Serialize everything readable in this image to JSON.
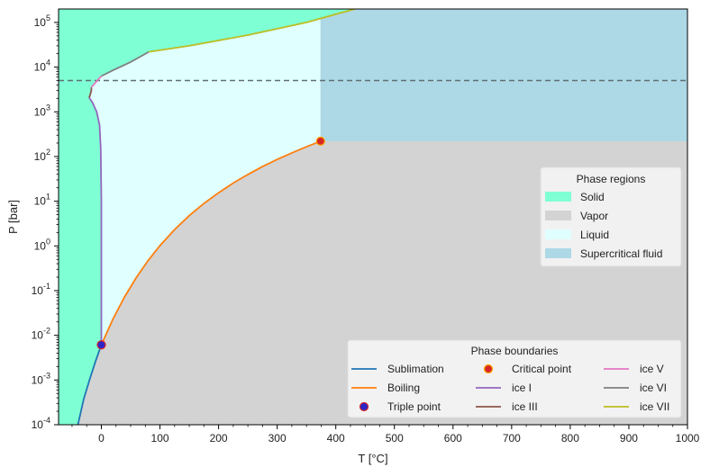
{
  "chart_data": {
    "type": "line",
    "xlabel": "T [°C]",
    "ylabel": "P [bar]",
    "xlim": [
      -73,
      1000
    ],
    "ylim_log10": [
      -4,
      5.3
    ],
    "y_scale": "log",
    "x_ticks": [
      0,
      100,
      200,
      300,
      400,
      500,
      600,
      700,
      800,
      900,
      1000
    ],
    "y_ticks": [
      {
        "exp": -4,
        "base": "10",
        "sup": "-4"
      },
      {
        "exp": -3,
        "base": "10",
        "sup": "-3"
      },
      {
        "exp": -2,
        "base": "10",
        "sup": "-2"
      },
      {
        "exp": -1,
        "base": "10",
        "sup": "-1"
      },
      {
        "exp": 0,
        "base": "10",
        "sup": "0"
      },
      {
        "exp": 1,
        "base": "10",
        "sup": "1"
      },
      {
        "exp": 2,
        "base": "10",
        "sup": "2"
      },
      {
        "exp": 3,
        "base": "10",
        "sup": "3"
      },
      {
        "exp": 4,
        "base": "10",
        "sup": "4"
      },
      {
        "exp": 5,
        "base": "10",
        "sup": "5"
      }
    ],
    "grid": false,
    "dashed_line": {
      "y": 5000,
      "color": "#5f6f73"
    },
    "regions": [
      {
        "name": "Solid",
        "color": "#7fffd4"
      },
      {
        "name": "Vapor",
        "color": "#d3d3d3"
      },
      {
        "name": "Liquid",
        "color": "#e0ffff"
      },
      {
        "name": "Supercritical fluid",
        "color": "#add8e6"
      }
    ],
    "series": [
      {
        "name": "Sublimation",
        "color": "#1f77b4",
        "points": [
          [
            -40,
            0.0001
          ],
          [
            -30,
            0.00038
          ],
          [
            -20,
            0.00103
          ],
          [
            -10,
            0.0026
          ],
          [
            0.01,
            0.00612
          ]
        ]
      },
      {
        "name": "Boiling",
        "color": "#ff7f0e",
        "points": [
          [
            0.01,
            0.00612
          ],
          [
            20,
            0.0234
          ],
          [
            40,
            0.0738
          ],
          [
            60,
            0.199
          ],
          [
            80,
            0.474
          ],
          [
            100,
            1.013
          ],
          [
            125,
            2.32
          ],
          [
            150,
            4.76
          ],
          [
            175,
            8.92
          ],
          [
            200,
            15.5
          ],
          [
            225,
            25.5
          ],
          [
            250,
            39.7
          ],
          [
            275,
            59.5
          ],
          [
            300,
            85.9
          ],
          [
            325,
            120.6
          ],
          [
            350,
            165.3
          ],
          [
            374,
            220.6
          ]
        ]
      },
      {
        "name": "ice I",
        "color": "#9467bd",
        "points": [
          [
            0.01,
            0.00612
          ],
          [
            0,
            10
          ],
          [
            -1,
            150
          ],
          [
            -3,
            500
          ],
          [
            -8,
            1000
          ],
          [
            -15,
            1600
          ],
          [
            -21,
            2100
          ]
        ]
      },
      {
        "name": "ice III",
        "color": "#8c564b",
        "points": [
          [
            -21,
            2100
          ],
          [
            -20,
            2200
          ],
          [
            -17,
            3000
          ],
          [
            -17,
            3500
          ]
        ]
      },
      {
        "name": "ice V",
        "color": "#e377c2",
        "points": [
          [
            -17,
            3500
          ],
          [
            -10,
            4500
          ],
          [
            0,
            6300
          ]
        ]
      },
      {
        "name": "ice VI",
        "color": "#7f7f7f",
        "points": [
          [
            0,
            6300
          ],
          [
            20,
            8500
          ],
          [
            50,
            13000
          ],
          [
            81,
            22000
          ]
        ]
      },
      {
        "name": "ice VII",
        "color": "#bcbd22",
        "points": [
          [
            81,
            22000
          ],
          [
            150,
            30000
          ],
          [
            250,
            52000
          ],
          [
            350,
            100000
          ],
          [
            420,
            180000
          ],
          [
            450,
            230000
          ]
        ]
      }
    ],
    "triple_point": {
      "name": "Triple point",
      "x": 0.01,
      "y": 0.00612,
      "face": "#2c24c8",
      "edge": "#d62728"
    },
    "critical_point": {
      "name": "Critical point",
      "x": 374,
      "y": 220.6,
      "face": "#d62728",
      "edge": "#ffa500"
    },
    "legend_regions": {
      "title": "Phase regions",
      "placement": "center-right"
    },
    "legend_boundaries": {
      "title": "Phase boundaries",
      "placement": "bottom-right",
      "entries": [
        {
          "label": "Sublimation",
          "kind": "line",
          "color": "#1f77b4"
        },
        {
          "label": "Boiling",
          "kind": "line",
          "color": "#ff7f0e"
        },
        {
          "label": "Triple point",
          "kind": "marker",
          "color": "#2c24c8",
          "edge": "#d62728"
        },
        {
          "label": "Critical point",
          "kind": "marker",
          "color": "#d62728",
          "edge": "#ffa500"
        },
        {
          "label": "ice I",
          "kind": "line",
          "color": "#9467bd"
        },
        {
          "label": "ice III",
          "kind": "line",
          "color": "#8c564b"
        },
        {
          "label": "ice V",
          "kind": "line",
          "color": "#e377c2"
        },
        {
          "label": "ice VI",
          "kind": "line",
          "color": "#7f7f7f"
        },
        {
          "label": "ice VII",
          "kind": "line",
          "color": "#bcbd22"
        }
      ]
    }
  }
}
